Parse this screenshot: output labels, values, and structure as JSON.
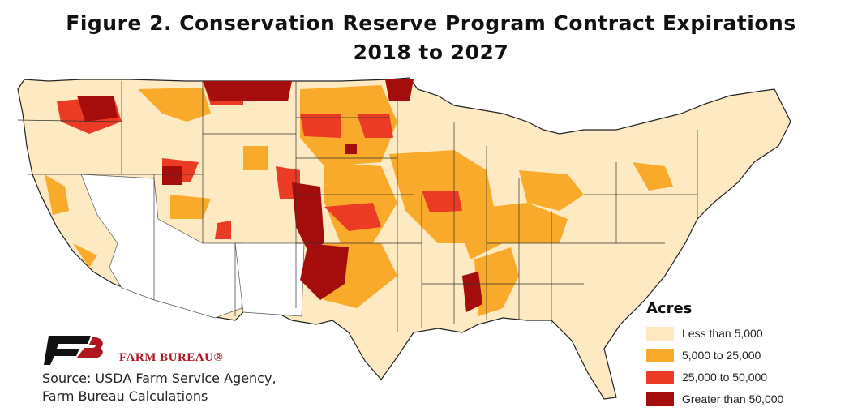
{
  "title_line1": "Figure 2. Conservation Reserve Program Contract Expirations",
  "title_line2": "2018 to 2027",
  "legend": {
    "title": "Acres",
    "items": [
      {
        "label": "Less than 5,000",
        "color": "#fde9c2"
      },
      {
        "label": "5,000 to 25,000",
        "color": "#f9aa2a"
      },
      {
        "label": "25,000 to 50,000",
        "color": "#ec3b25"
      },
      {
        "label": "Greater than 50,000",
        "color": "#a50d0d"
      }
    ]
  },
  "brand": "FARM BUREAU®",
  "brand_color": "#b0161e",
  "source_line1": "Source: USDA Farm Service Agency,",
  "source_line2": "Farm Bureau Calculations"
}
